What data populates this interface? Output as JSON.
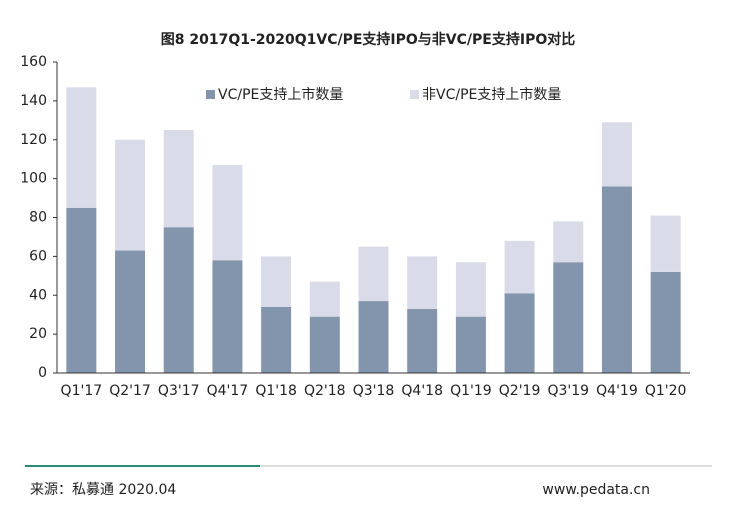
{
  "chart_data": {
    "type": "stacked-bar",
    "title": "图8 2017Q1-2020Q1VC/PE支持IPO与非VC/PE支持IPO对比",
    "categories": [
      "Q1'17",
      "Q2'17",
      "Q3'17",
      "Q4'17",
      "Q1'18",
      "Q2'18",
      "Q3'18",
      "Q4'18",
      "Q1'19",
      "Q2'19",
      "Q3'19",
      "Q4'19",
      "Q1'20"
    ],
    "series": [
      {
        "name": "VC/PE支持上市数量",
        "color": "#8394ad",
        "values": [
          85,
          63,
          75,
          58,
          34,
          29,
          37,
          33,
          29,
          41,
          57,
          96,
          52
        ]
      },
      {
        "name": "非VC/PE支持上市数量",
        "color": "#d9dce8",
        "values": [
          62,
          57,
          50,
          49,
          26,
          18,
          28,
          27,
          28,
          27,
          21,
          33,
          29
        ]
      }
    ],
    "ylim": [
      0,
      160
    ],
    "yticks": [
      0,
      20,
      40,
      60,
      80,
      100,
      120,
      140,
      160
    ],
    "legend": "top",
    "source": "来源：私募通 2020.04",
    "website": "www.pedata.cn"
  }
}
